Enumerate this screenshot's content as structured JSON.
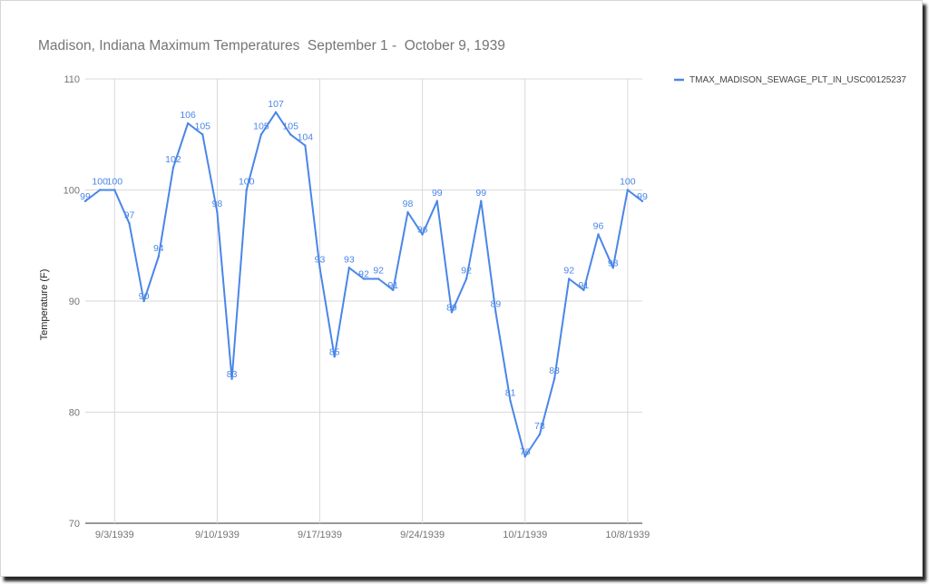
{
  "chart_data": {
    "type": "line",
    "title": "Madison, Indiana Maximum Temperatures  September 1 -  October 9, 1939",
    "ylabel": "Temperature (F)",
    "xlabel": "",
    "ylim": [
      70,
      110
    ],
    "yticks": [
      70,
      80,
      90,
      100,
      110
    ],
    "xticks": [
      "9/3/1939",
      "9/10/1939",
      "9/17/1939",
      "9/24/1939",
      "10/1/1939",
      "10/8/1939"
    ],
    "x": [
      "9/1/1939",
      "9/2/1939",
      "9/3/1939",
      "9/4/1939",
      "9/5/1939",
      "9/6/1939",
      "9/7/1939",
      "9/8/1939",
      "9/9/1939",
      "9/10/1939",
      "9/11/1939",
      "9/12/1939",
      "9/13/1939",
      "9/14/1939",
      "9/15/1939",
      "9/16/1939",
      "9/17/1939",
      "9/18/1939",
      "9/19/1939",
      "9/20/1939",
      "9/21/1939",
      "9/22/1939",
      "9/23/1939",
      "9/24/1939",
      "9/25/1939",
      "9/26/1939",
      "9/27/1939",
      "9/28/1939",
      "9/29/1939",
      "9/30/1939",
      "10/1/1939",
      "10/2/1939",
      "10/3/1939",
      "10/4/1939",
      "10/5/1939",
      "10/6/1939",
      "10/7/1939",
      "10/8/1939",
      "10/9/1939"
    ],
    "series": [
      {
        "name": "TMAX_MADISON_SEWAGE_PLT_IN_USC00125237",
        "color": "#4a86e8",
        "values": [
          99,
          100,
          100,
          97,
          90,
          94,
          102,
          106,
          105,
          98,
          83,
          100,
          105,
          107,
          105,
          104,
          93,
          85,
          93,
          92,
          92,
          91,
          98,
          96,
          99,
          89,
          92,
          99,
          89,
          81,
          76,
          78,
          83,
          92,
          91,
          96,
          93,
          100,
          99
        ]
      }
    ],
    "grid": true,
    "legend": "right"
  }
}
